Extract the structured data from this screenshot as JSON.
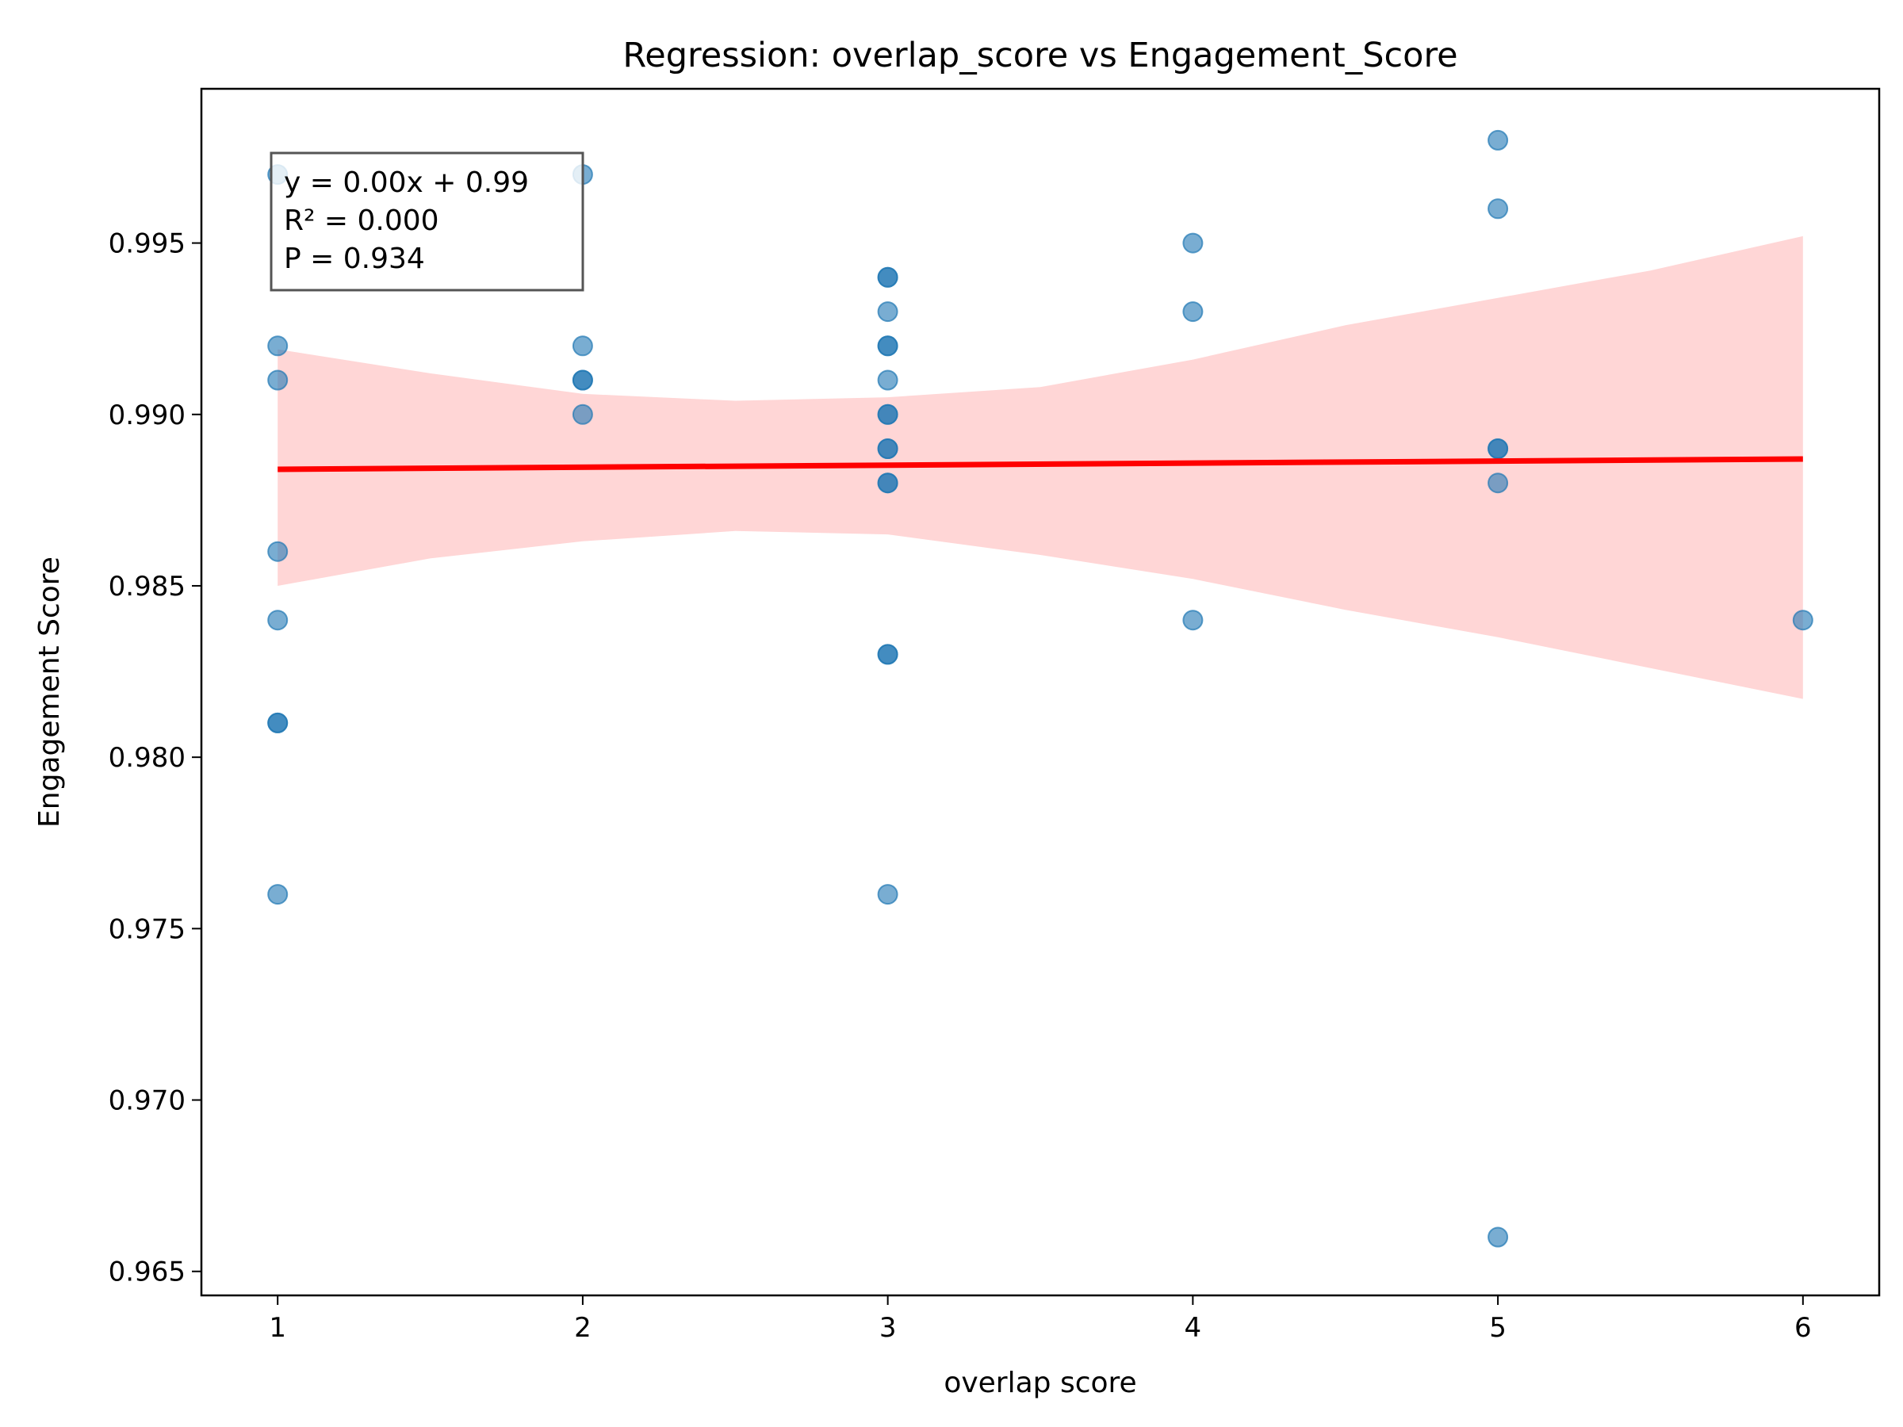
{
  "chart_data": {
    "type": "scatter",
    "title": "Regression: overlap_score vs Engagement_Score",
    "xlabel": "overlap score",
    "ylabel": "Engagement Score",
    "xlim": [
      0.75,
      6.25
    ],
    "ylim": [
      0.9643,
      0.9995
    ],
    "xticks": [
      1,
      2,
      3,
      4,
      5,
      6
    ],
    "yticks": [
      0.965,
      0.97,
      0.975,
      0.98,
      0.985,
      0.99,
      0.995
    ],
    "ytick_labels": [
      "0.965",
      "0.970",
      "0.975",
      "0.980",
      "0.985",
      "0.990",
      "0.995"
    ],
    "grid": false,
    "colors": {
      "points": "#1f77b4",
      "regression_line": "#ff0000",
      "confidence_band": "#ffd6d6"
    },
    "points": [
      {
        "x": 1,
        "y": 0.997
      },
      {
        "x": 1,
        "y": 0.992
      },
      {
        "x": 1,
        "y": 0.991
      },
      {
        "x": 1,
        "y": 0.986
      },
      {
        "x": 1,
        "y": 0.984
      },
      {
        "x": 1,
        "y": 0.981
      },
      {
        "x": 1,
        "y": 0.981
      },
      {
        "x": 1,
        "y": 0.976
      },
      {
        "x": 2,
        "y": 0.997
      },
      {
        "x": 2,
        "y": 0.992
      },
      {
        "x": 2,
        "y": 0.991
      },
      {
        "x": 2,
        "y": 0.991
      },
      {
        "x": 2,
        "y": 0.99
      },
      {
        "x": 3,
        "y": 0.994
      },
      {
        "x": 3,
        "y": 0.994
      },
      {
        "x": 3,
        "y": 0.993
      },
      {
        "x": 3,
        "y": 0.992
      },
      {
        "x": 3,
        "y": 0.992
      },
      {
        "x": 3,
        "y": 0.991
      },
      {
        "x": 3,
        "y": 0.99
      },
      {
        "x": 3,
        "y": 0.99
      },
      {
        "x": 3,
        "y": 0.989
      },
      {
        "x": 3,
        "y": 0.989
      },
      {
        "x": 3,
        "y": 0.988
      },
      {
        "x": 3,
        "y": 0.988
      },
      {
        "x": 3,
        "y": 0.983
      },
      {
        "x": 3,
        "y": 0.983
      },
      {
        "x": 3,
        "y": 0.976
      },
      {
        "x": 4,
        "y": 0.995
      },
      {
        "x": 4,
        "y": 0.993
      },
      {
        "x": 4,
        "y": 0.984
      },
      {
        "x": 5,
        "y": 0.998
      },
      {
        "x": 5,
        "y": 0.996
      },
      {
        "x": 5,
        "y": 0.989
      },
      {
        "x": 5,
        "y": 0.989
      },
      {
        "x": 5,
        "y": 0.988
      },
      {
        "x": 5,
        "y": 0.966
      },
      {
        "x": 6,
        "y": 0.984
      }
    ],
    "regression_line": {
      "x": [
        1,
        6
      ],
      "y": [
        0.9884,
        0.9887
      ]
    },
    "confidence_band": {
      "x": [
        1,
        1.5,
        2,
        2.5,
        3,
        3.5,
        4,
        4.5,
        5,
        5.5,
        6
      ],
      "upper": [
        0.9919,
        0.9912,
        0.9906,
        0.9904,
        0.9905,
        0.9908,
        0.9916,
        0.9926,
        0.9934,
        0.9942,
        0.9952
      ],
      "lower": [
        0.985,
        0.9858,
        0.9863,
        0.9866,
        0.9865,
        0.9859,
        0.9852,
        0.9843,
        0.9835,
        0.9826,
        0.9817
      ]
    },
    "annotation": {
      "lines": [
        "y = 0.00x + 0.99",
        "R² = 0.000",
        "P = 0.934"
      ],
      "placement": "top-left"
    }
  }
}
